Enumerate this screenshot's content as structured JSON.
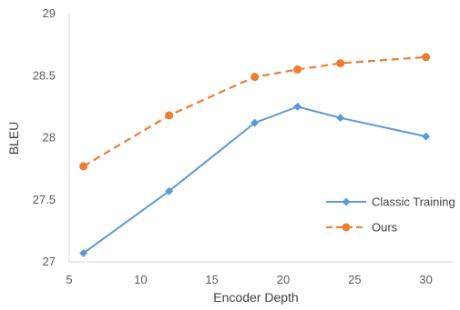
{
  "chart_data": {
    "type": "line",
    "title": "",
    "xlabel": "Encoder Depth",
    "ylabel": "BLEU",
    "xlim": [
      5,
      32
    ],
    "ylim": [
      27,
      29
    ],
    "xticks": [
      5,
      10,
      15,
      20,
      25,
      30
    ],
    "yticks": [
      27,
      27.5,
      28,
      28.5,
      29
    ],
    "ytick_labels": [
      "27",
      "27.5",
      "28",
      "28.5",
      "29"
    ],
    "legend_position": "right",
    "grid": false,
    "series": [
      {
        "name": "Classic Training",
        "color": "#5B9BD5",
        "marker": "diamond",
        "line_style": "solid",
        "x": [
          6,
          12,
          18,
          21,
          24,
          30
        ],
        "y": [
          27.07,
          27.57,
          28.12,
          28.25,
          28.16,
          28.01
        ]
      },
      {
        "name": "Ours",
        "color": "#ED7D31",
        "marker": "circle",
        "line_style": "dashed",
        "x": [
          6,
          12,
          18,
          21,
          24,
          30
        ],
        "y": [
          27.77,
          28.18,
          28.49,
          28.55,
          28.6,
          28.65
        ]
      }
    ]
  }
}
